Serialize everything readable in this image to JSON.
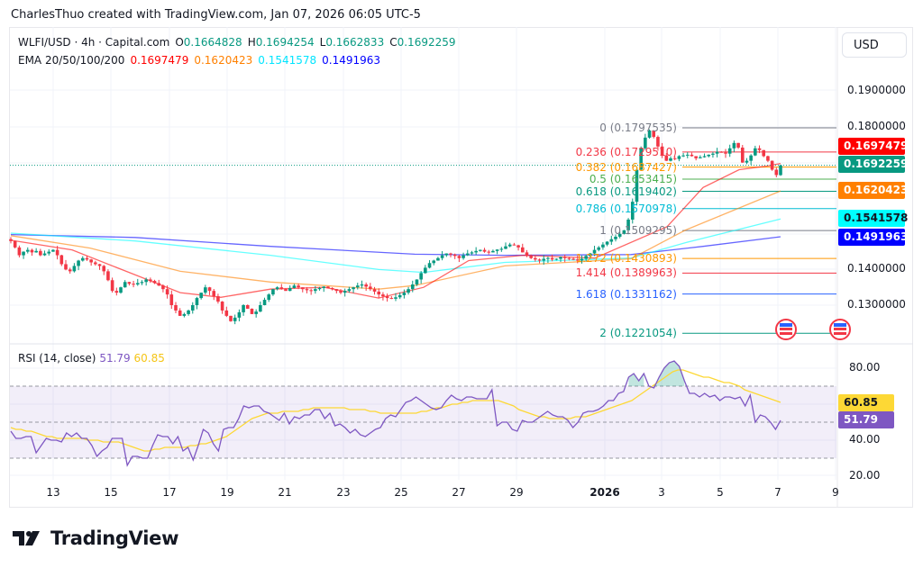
{
  "header": {
    "credit": "CharlesThuo created with TradingView.com, Jan 07, 2026 06:05 UTC-5"
  },
  "legend": {
    "symbol": "WLFI/USD · 4h · Capital.com",
    "o_label": "O",
    "o_value": "0.1664828",
    "h_label": "H",
    "h_value": "0.1694254",
    "l_label": "L",
    "l_value": "0.1662833",
    "c_label": "C",
    "c_value": "0.1692259",
    "ema_label": "EMA 20/50/100/200",
    "ema20": "0.1697479",
    "ema50": "0.1620423",
    "ema100": "0.1541578",
    "ema200": "0.1491963"
  },
  "rsi_legend": {
    "label": "RSI (14, close)",
    "rsi": "51.79",
    "ma": "60.85"
  },
  "currency_button": "USD",
  "colors": {
    "up": "#089981",
    "down": "#f23645",
    "ema20": "#ff0000",
    "ema50": "#ff8000",
    "ema100": "#00ffff",
    "ema200": "#0000ff",
    "rsi": "#7e57c2",
    "rsi_ma": "#fdd835"
  },
  "price_axis": [
    "0.1900000",
    "0.1800000",
    "0.1400000",
    "0.1300000"
  ],
  "price_tags": [
    {
      "name": "ema20-tag",
      "value": "0.1697479",
      "bg": "#ff0000",
      "fg": "#ffffff"
    },
    {
      "name": "last-price-tag",
      "value": "0.1692259",
      "bg": "#089981",
      "fg": "#ffffff"
    },
    {
      "name": "ema50-tag",
      "value": "0.1620423",
      "bg": "#ff8000",
      "fg": "#ffffff"
    },
    {
      "name": "ema100-tag",
      "value": "0.1541578",
      "bg": "#00ffff",
      "fg": "#131722"
    },
    {
      "name": "ema200-tag",
      "value": "0.1491963",
      "bg": "#0000ff",
      "fg": "#ffffff"
    }
  ],
  "rsi_axis": [
    "80.00",
    "40.00",
    "20.00"
  ],
  "rsi_tags": [
    {
      "name": "rsi-ma-tag",
      "value": "60.85",
      "bg": "#fdd835",
      "fg": "#131722"
    },
    {
      "name": "rsi-tag",
      "value": "51.79",
      "bg": "#7e57c2",
      "fg": "#ffffff"
    }
  ],
  "time_axis": [
    "13",
    "15",
    "17",
    "19",
    "21",
    "23",
    "25",
    "27",
    "29",
    "2026",
    "3",
    "5",
    "7",
    "9"
  ],
  "logo_text": "TradingView",
  "chart_data": [
    {
      "type": "candlestick",
      "title": "WLFI/USD · 4h · Capital.com",
      "xlabel": "",
      "ylabel": "USD",
      "ylim": [
        0.122,
        0.195
      ],
      "x_ticks": [
        "13",
        "15",
        "17",
        "19",
        "21",
        "23",
        "25",
        "27",
        "29",
        "2026",
        "3",
        "5",
        "7",
        "9"
      ],
      "y_ticks": [
        0.19,
        0.18,
        0.14,
        0.13
      ],
      "last_ohlc": {
        "open": 0.1664828,
        "high": 0.1694254,
        "low": 0.1662833,
        "close": 0.1692259
      },
      "closes_approx": [
        0.148,
        0.1462,
        0.144,
        0.145,
        0.1455,
        0.1448,
        0.1452,
        0.144,
        0.1445,
        0.145,
        0.1455,
        0.144,
        0.1415,
        0.14,
        0.1395,
        0.141,
        0.1425,
        0.1432,
        0.1428,
        0.142,
        0.1415,
        0.141,
        0.1395,
        0.137,
        0.134,
        0.1335,
        0.135,
        0.1365,
        0.136,
        0.1358,
        0.1362,
        0.1365,
        0.1372,
        0.1368,
        0.1362,
        0.1355,
        0.1345,
        0.133,
        0.13,
        0.1285,
        0.127,
        0.1275,
        0.1285,
        0.13,
        0.132,
        0.1335,
        0.135,
        0.134,
        0.1325,
        0.131,
        0.1285,
        0.127,
        0.1255,
        0.1265,
        0.128,
        0.13,
        0.129,
        0.1275,
        0.1282,
        0.13,
        0.1315,
        0.133,
        0.1345,
        0.135,
        0.1345,
        0.134,
        0.1348,
        0.1355,
        0.135,
        0.1345,
        0.1342,
        0.134,
        0.1345,
        0.1348,
        0.1352,
        0.1348,
        0.1345,
        0.134,
        0.1335,
        0.134,
        0.1345,
        0.135,
        0.1355,
        0.1358,
        0.1352,
        0.1345,
        0.1338,
        0.133,
        0.1325,
        0.132,
        0.1318,
        0.1322,
        0.1328,
        0.1335,
        0.1345,
        0.1358,
        0.1372,
        0.139,
        0.1405,
        0.1418,
        0.1425,
        0.1432,
        0.144,
        0.1445,
        0.1442,
        0.1438,
        0.1432,
        0.144,
        0.1445,
        0.1448,
        0.1452,
        0.1455,
        0.145,
        0.1448,
        0.1452,
        0.1456,
        0.1458,
        0.1465,
        0.147,
        0.1468,
        0.1462,
        0.1448,
        0.1438,
        0.1432,
        0.1428,
        0.1425,
        0.143,
        0.1432,
        0.1428,
        0.143,
        0.1435,
        0.1432,
        0.143,
        0.1428,
        0.1425,
        0.143,
        0.1438,
        0.1445,
        0.1455,
        0.1462,
        0.147,
        0.1478,
        0.1485,
        0.1492,
        0.15,
        0.151,
        0.154,
        0.159,
        0.168,
        0.174,
        0.177,
        0.179,
        0.1772,
        0.1745,
        0.172,
        0.1705,
        0.1712,
        0.171,
        0.1718,
        0.172,
        0.1722,
        0.1718,
        0.1712,
        0.1715,
        0.1718,
        0.1722,
        0.1725,
        0.173,
        0.1728,
        0.1725,
        0.174,
        0.1755,
        0.1742,
        0.17,
        0.1705,
        0.172,
        0.174,
        0.1735,
        0.1718,
        0.1705,
        0.168,
        0.1665,
        0.1692
      ],
      "series": [
        {
          "name": "EMA 20",
          "last": 0.1697479
        },
        {
          "name": "EMA 50",
          "last": 0.1620423
        },
        {
          "name": "EMA 100",
          "last": 0.1541578
        },
        {
          "name": "EMA 200",
          "last": 0.1491963
        }
      ],
      "fibonacci": [
        {
          "level": "0",
          "price": "0.1797535",
          "color": "#787b86"
        },
        {
          "level": "0.236",
          "price": "0.1729510",
          "color": "#f23645"
        },
        {
          "level": "0.382",
          "price": "0.1687427",
          "color": "#ff9800"
        },
        {
          "level": "0.5",
          "price": "0.1653415",
          "color": "#4caf50"
        },
        {
          "level": "0.618",
          "price": "0.1619402",
          "color": "#089981"
        },
        {
          "level": "0.786",
          "price": "0.1570978",
          "color": "#00bcd4"
        },
        {
          "level": "1",
          "price": "0.1509295",
          "color": "#787b86"
        },
        {
          "level": "1.272",
          "price": "0.1430893",
          "color": "#ff9800"
        },
        {
          "level": "1.414",
          "price": "0.1389963",
          "color": "#f23645"
        },
        {
          "level": "1.618",
          "price": "0.1331162",
          "color": "#2962ff"
        },
        {
          "level": "2",
          "price": "0.1221054",
          "color": "#089981"
        }
      ]
    },
    {
      "type": "line",
      "title": "RSI (14, close)",
      "ylim": [
        15,
        90
      ],
      "y_ticks": [
        80,
        40,
        20
      ],
      "bands": {
        "upper": 70,
        "middle": 50,
        "lower": 30
      },
      "series": [
        {
          "name": "RSI",
          "last": 51.79,
          "values": [
            45,
            41,
            41,
            42,
            42,
            33,
            37,
            41,
            40,
            40,
            39,
            44,
            42,
            44,
            41,
            41,
            37,
            31,
            34,
            36,
            41,
            41,
            41,
            26,
            31,
            31,
            30,
            30,
            37,
            43,
            42,
            42,
            38,
            42,
            34,
            36,
            29,
            37,
            46,
            44,
            38,
            34,
            46,
            47,
            47,
            52,
            59,
            58,
            59,
            59,
            56,
            55,
            53,
            51,
            55,
            49,
            53,
            52,
            54,
            54,
            57,
            57,
            52,
            55,
            48,
            49,
            47,
            44,
            46,
            43,
            42,
            44,
            46,
            47,
            52,
            54,
            53,
            57,
            61,
            62,
            64,
            62,
            60,
            58,
            57,
            58,
            62,
            65,
            63,
            62,
            64,
            64,
            63,
            63,
            63,
            68,
            48,
            50,
            50,
            46,
            45,
            51,
            50,
            50,
            52,
            54,
            56,
            54,
            53,
            53,
            51,
            47,
            50,
            55,
            56,
            56,
            57,
            59,
            62,
            62,
            66,
            67,
            75,
            77,
            73,
            77,
            70,
            69,
            75,
            80,
            83,
            84,
            81,
            73,
            66,
            66,
            64,
            66,
            64,
            65,
            62,
            64,
            64,
            63,
            64,
            59,
            65,
            50,
            54,
            53,
            50,
            46,
            51
          ]
        },
        {
          "name": "RSI MA",
          "last": 60.85,
          "values": [
            47,
            46,
            46,
            45,
            45,
            44,
            43,
            42,
            42,
            41,
            41,
            41,
            41,
            41,
            41,
            40,
            40,
            40,
            39,
            39,
            39,
            39,
            38,
            37,
            36,
            35,
            34,
            34,
            35,
            35,
            36,
            36,
            36,
            36,
            36,
            37,
            37,
            38,
            38,
            39,
            40,
            41,
            42,
            44,
            46,
            48,
            50,
            52,
            53,
            54,
            55,
            55,
            55,
            56,
            56,
            56,
            56,
            57,
            57,
            58,
            58,
            58,
            58,
            58,
            58,
            58,
            57,
            57,
            57,
            57,
            56,
            56,
            55,
            55,
            55,
            55,
            55,
            55,
            55,
            55,
            56,
            56,
            57,
            58,
            58,
            59,
            60,
            60,
            61,
            61,
            62,
            62,
            62,
            62,
            62,
            62,
            61,
            60,
            59,
            57,
            56,
            55,
            54,
            53,
            53,
            52,
            52,
            52,
            52,
            52,
            53,
            53,
            53,
            54,
            55,
            56,
            57,
            58,
            59,
            60,
            61,
            62,
            64,
            66,
            68,
            70,
            72,
            74,
            76,
            78,
            79,
            79,
            78,
            77,
            76,
            75,
            75,
            74,
            73,
            72,
            72,
            71,
            70,
            68,
            67,
            66,
            65,
            64,
            63,
            62,
            61
          ]
        }
      ]
    }
  ]
}
